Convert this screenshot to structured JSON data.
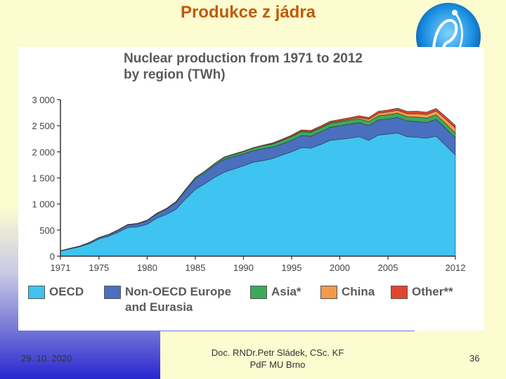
{
  "slide": {
    "title": "Produkce z jádra",
    "date": "29. 10. 2020",
    "author_line1": "Doc. RNDr.Petr Sládek, CSc. KF",
    "author_line2": "PdF MU Brno",
    "page": "36"
  },
  "colors": {
    "oecd": "#3fc3f0",
    "non_oecd": "#4a6fbf",
    "asia": "#3aaa5a",
    "china": "#f29a4a",
    "other": "#e0462e",
    "title": "#c05a0a"
  },
  "chart_data": {
    "type": "area",
    "title_line1": "Nuclear production from 1971 to 2012",
    "title_line2": "by region (TWh)",
    "xlabel": "",
    "ylabel": "",
    "ylim": [
      0,
      3000
    ],
    "xlim": [
      1971,
      2012
    ],
    "y_ticks": [
      "0",
      "500",
      "1 000",
      "1 500",
      "2 000",
      "2 500",
      "3 000"
    ],
    "y_tick_values": [
      0,
      500,
      1000,
      1500,
      2000,
      2500,
      3000
    ],
    "x_ticks": [
      "1971",
      "1975",
      "1980",
      "1985",
      "1990",
      "1995",
      "2000",
      "2005",
      "2012"
    ],
    "x_tick_values": [
      1971,
      1975,
      1980,
      1985,
      1990,
      1995,
      2000,
      2005,
      2012
    ],
    "grid": false,
    "stacked": true,
    "x": [
      1971,
      1972,
      1973,
      1974,
      1975,
      1976,
      1977,
      1978,
      1979,
      1980,
      1981,
      1982,
      1983,
      1984,
      1985,
      1986,
      1987,
      1988,
      1989,
      1990,
      1991,
      1992,
      1993,
      1994,
      1995,
      1996,
      1997,
      1998,
      1999,
      2000,
      2001,
      2002,
      2003,
      2004,
      2005,
      2006,
      2007,
      2008,
      2009,
      2010,
      2011,
      2012
    ],
    "series": [
      {
        "name": "OECD",
        "color_key": "oecd",
        "values": [
          100,
          140,
          180,
          240,
          330,
          380,
          460,
          550,
          560,
          610,
          730,
          800,
          900,
          1100,
          1280,
          1390,
          1510,
          1610,
          1670,
          1730,
          1800,
          1830,
          1870,
          1940,
          2000,
          2080,
          2070,
          2140,
          2220,
          2240,
          2260,
          2290,
          2220,
          2320,
          2340,
          2360,
          2290,
          2280,
          2260,
          2300,
          2120,
          1940
        ]
      },
      {
        "name": "Non-OECD Europe and Eurasia",
        "values": [
          5,
          8,
          12,
          20,
          25,
          30,
          40,
          50,
          60,
          70,
          80,
          100,
          130,
          160,
          200,
          210,
          230,
          250,
          240,
          230,
          220,
          230,
          220,
          210,
          220,
          230,
          230,
          240,
          250,
          260,
          270,
          270,
          280,
          290,
          290,
          300,
          300,
          300,
          300,
          320,
          330,
          330
        ]
      },
      {
        "name": "Asia*",
        "values": [
          1,
          2,
          3,
          4,
          5,
          6,
          7,
          8,
          9,
          10,
          12,
          14,
          16,
          20,
          25,
          28,
          30,
          35,
          40,
          45,
          50,
          55,
          60,
          65,
          70,
          75,
          75,
          75,
          75,
          75,
          75,
          75,
          80,
          80,
          80,
          80,
          80,
          85,
          85,
          90,
          90,
          90
        ]
      },
      {
        "name": "China",
        "values": [
          0,
          0,
          0,
          0,
          0,
          0,
          0,
          0,
          0,
          0,
          0,
          0,
          0,
          0,
          0,
          0,
          0,
          0,
          0,
          0,
          0,
          0,
          5,
          10,
          12,
          13,
          14,
          14,
          15,
          16,
          17,
          25,
          43,
          50,
          53,
          55,
          62,
          68,
          70,
          74,
          86,
          97
        ]
      },
      {
        "name": "Other**",
        "values": [
          0,
          0,
          0,
          0,
          0,
          0,
          0,
          0,
          0,
          0,
          2,
          3,
          4,
          5,
          6,
          7,
          8,
          9,
          10,
          11,
          12,
          14,
          16,
          18,
          20,
          22,
          24,
          26,
          28,
          30,
          32,
          34,
          36,
          38,
          40,
          42,
          44,
          46,
          46,
          48,
          50,
          50
        ]
      }
    ],
    "legend": [
      {
        "label_line1": "OECD",
        "label_line2": "",
        "color_key": "oecd"
      },
      {
        "label_line1": "Non-OECD Europe",
        "label_line2": "and Eurasia",
        "color_key": "non_oecd"
      },
      {
        "label_line1": "Asia*",
        "label_line2": "",
        "color_key": "asia"
      },
      {
        "label_line1": "China",
        "label_line2": "",
        "color_key": "china"
      },
      {
        "label_line1": "Other**",
        "label_line2": "",
        "color_key": "other"
      }
    ],
    "legend_placement": "bottom"
  }
}
